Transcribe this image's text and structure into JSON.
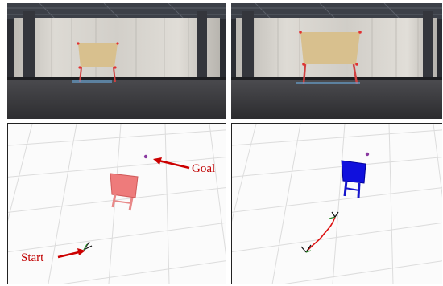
{
  "figure": {
    "panels": [
      {
        "id": "camera-view-start",
        "kind": "photo"
      },
      {
        "id": "camera-view-goal",
        "kind": "photo"
      },
      {
        "id": "sim-view-plan",
        "kind": "3d-render",
        "annotations": {
          "goal_label": "Goal",
          "start_label": "Start"
        }
      },
      {
        "id": "sim-view-result",
        "kind": "3d-render"
      }
    ]
  },
  "colors": {
    "curtain": "#d4d1cb",
    "floor": "#3a3a3d",
    "board": "#d8c08e",
    "marker": "#e23030",
    "ghost_board": "#ee7b7b",
    "solid_board": "#1010dd",
    "trajectory": "#dd1111",
    "goal_dot": "#8a3aa0",
    "annotation": "#cc0000"
  }
}
